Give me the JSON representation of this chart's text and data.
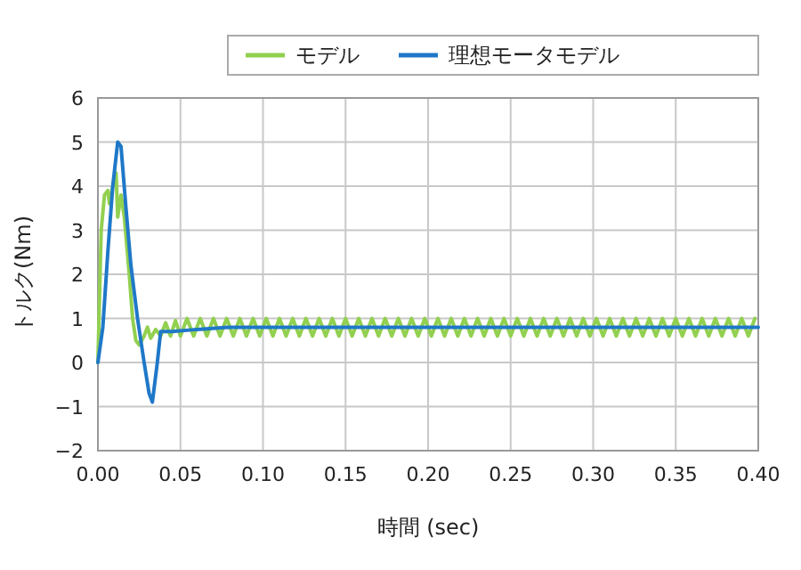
{
  "chart_data": {
    "type": "line",
    "xlabel": "時間 (sec)",
    "ylabel": "トルク(Nm)",
    "xlim": [
      0,
      0.4
    ],
    "ylim": [
      -2,
      6
    ],
    "xticks": [
      {
        "value": 0,
        "label": "0.00"
      },
      {
        "value": 0.05,
        "label": "0.05"
      },
      {
        "value": 0.1,
        "label": "0.10"
      },
      {
        "value": 0.15,
        "label": "0.15"
      },
      {
        "value": 0.2,
        "label": "0.20"
      },
      {
        "value": 0.25,
        "label": "0.25"
      },
      {
        "value": 0.3,
        "label": "0.30"
      },
      {
        "value": 0.35,
        "label": "0.35"
      },
      {
        "value": 0.4,
        "label": "0.40"
      }
    ],
    "yticks": [
      -2,
      -1,
      0,
      1,
      2,
      3,
      4,
      5,
      6
    ],
    "grid": true,
    "legend": "top",
    "marker": "none",
    "line_style": "solid",
    "series": [
      {
        "name": "モデル",
        "color": "#92d050",
        "x": [
          0,
          0.002,
          0.004,
          0.006,
          0.007,
          0.009,
          0.011,
          0.012,
          0.014,
          0.016,
          0.019,
          0.021,
          0.023,
          0.025,
          0.028,
          0.03,
          0.032,
          0.035,
          0.038,
          0.041,
          0.044,
          0.047,
          0.05,
          0.054,
          0.058,
          0.062,
          0.066,
          0.07,
          0.074,
          0.078,
          0.082,
          0.086,
          0.09,
          0.094,
          0.098,
          0.102,
          0.106,
          0.11,
          0.114,
          0.118,
          0.122,
          0.126,
          0.13,
          0.134,
          0.138,
          0.142,
          0.146,
          0.15,
          0.154,
          0.158,
          0.162,
          0.166,
          0.17,
          0.174,
          0.178,
          0.182,
          0.186,
          0.19,
          0.194,
          0.198,
          0.202,
          0.206,
          0.21,
          0.214,
          0.218,
          0.222,
          0.226,
          0.23,
          0.234,
          0.238,
          0.242,
          0.246,
          0.25,
          0.254,
          0.258,
          0.262,
          0.266,
          0.27,
          0.274,
          0.278,
          0.282,
          0.286,
          0.29,
          0.294,
          0.298,
          0.302,
          0.306,
          0.31,
          0.314,
          0.318,
          0.322,
          0.326,
          0.33,
          0.334,
          0.338,
          0.342,
          0.346,
          0.35,
          0.354,
          0.358,
          0.362,
          0.366,
          0.37,
          0.374,
          0.378,
          0.382,
          0.386,
          0.39,
          0.394,
          0.398
        ],
        "values": [
          0,
          3.0,
          3.8,
          3.9,
          3.6,
          4.0,
          4.3,
          3.3,
          3.8,
          3.3,
          2.0,
          1.0,
          0.5,
          0.4,
          0.6,
          0.8,
          0.55,
          0.75,
          0.6,
          0.9,
          0.6,
          0.95,
          0.6,
          1.0,
          0.6,
          1.0,
          0.6,
          1.0,
          0.6,
          1.0,
          0.6,
          1.0,
          0.6,
          1.0,
          0.6,
          1.0,
          0.6,
          1.0,
          0.6,
          1.0,
          0.6,
          1.0,
          0.6,
          1.0,
          0.6,
          1.0,
          0.6,
          1.0,
          0.6,
          1.0,
          0.6,
          1.0,
          0.6,
          1.0,
          0.6,
          1.0,
          0.6,
          1.0,
          0.6,
          1.0,
          0.6,
          1.0,
          0.6,
          1.0,
          0.6,
          1.0,
          0.6,
          1.0,
          0.6,
          1.0,
          0.6,
          1.0,
          0.6,
          1.0,
          0.6,
          1.0,
          0.6,
          1.0,
          0.6,
          1.0,
          0.6,
          1.0,
          0.6,
          1.0,
          0.6,
          1.0,
          0.6,
          1.0,
          0.6,
          1.0,
          0.6,
          1.0,
          0.6,
          1.0,
          0.6,
          1.0,
          0.6,
          1.0,
          0.6,
          1.0,
          0.6,
          1.0,
          0.6,
          1.0,
          0.6,
          1.0,
          0.6,
          1.0,
          0.6,
          1.0
        ]
      },
      {
        "name": "理想モータモデル",
        "color": "#1f78c8",
        "x": [
          0,
          0.003,
          0.006,
          0.009,
          0.012,
          0.014,
          0.017,
          0.02,
          0.024,
          0.028,
          0.031,
          0.033,
          0.036,
          0.038,
          0.045,
          0.06,
          0.08,
          0.4
        ],
        "values": [
          0,
          0.8,
          2.5,
          4.0,
          5.0,
          4.9,
          3.5,
          2.2,
          1.0,
          0,
          -0.7,
          -0.9,
          0,
          0.7,
          0.7,
          0.75,
          0.8,
          0.8
        ]
      }
    ]
  }
}
